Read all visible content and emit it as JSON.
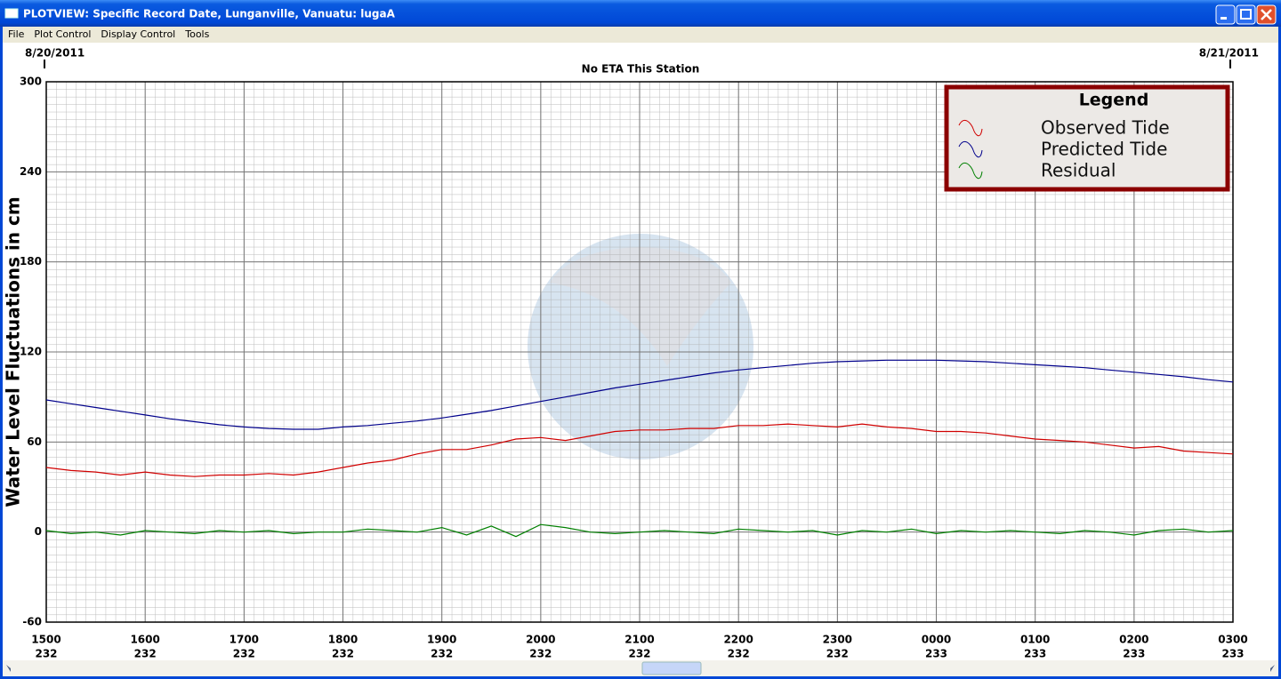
{
  "window": {
    "title": "PLOTVIEW: Specific Record Date, Lunganville, Vanuatu: lugaA"
  },
  "menu": [
    "File",
    "Plot Control",
    "Display Control",
    "Tools"
  ],
  "chart_data": {
    "type": "line",
    "annotation": "No ETA This Station",
    "date_left": "8/20/2011",
    "date_right": "8/21/2011",
    "ylabel": "Water Level Fluctuations in cm",
    "legend_title": "Legend",
    "legend_position": "upper right",
    "grid": true,
    "x": [
      15,
      15.25,
      15.5,
      15.75,
      16,
      16.25,
      16.5,
      16.75,
      17,
      17.25,
      17.5,
      17.75,
      18,
      18.25,
      18.5,
      18.75,
      19,
      19.25,
      19.5,
      19.75,
      20,
      20.25,
      20.5,
      20.75,
      21,
      21.25,
      21.5,
      21.75,
      22,
      22.25,
      22.5,
      22.75,
      23,
      23.25,
      23.5,
      23.75,
      24,
      24.25,
      24.5,
      24.75,
      25,
      25.25,
      25.5,
      25.75,
      26,
      26.25,
      26.5,
      26.75,
      27
    ],
    "xlim": [
      15,
      27
    ],
    "xticks": [
      {
        "value": 15,
        "label": "1500"
      },
      {
        "value": 16,
        "label": "1600"
      },
      {
        "value": 17,
        "label": "1700"
      },
      {
        "value": 18,
        "label": "1800"
      },
      {
        "value": 19,
        "label": "1900"
      },
      {
        "value": 20,
        "label": "2000"
      },
      {
        "value": 21,
        "label": "2100"
      },
      {
        "value": 22,
        "label": "2200"
      },
      {
        "value": 23,
        "label": "2300"
      },
      {
        "value": 24,
        "label": "0000"
      },
      {
        "value": 25,
        "label": "0100"
      },
      {
        "value": 26,
        "label": "0200"
      },
      {
        "value": 27,
        "label": "0300"
      }
    ],
    "xtick_sublabels": [
      "232",
      "232",
      "232",
      "232",
      "232",
      "232",
      "232",
      "232",
      "232",
      "233",
      "233",
      "233",
      "233"
    ],
    "highlight_xtick": 9,
    "highlight_color": "#c00000",
    "ylim": [
      -60,
      300
    ],
    "yticks": [
      -60,
      0,
      60,
      120,
      180,
      240,
      300
    ],
    "series": [
      {
        "name": "Observed Tide",
        "color": "#d00000",
        "values": [
          43,
          41,
          40,
          38,
          40,
          38,
          37,
          38,
          38,
          39,
          38,
          40,
          43,
          46,
          48,
          52,
          55,
          55,
          58,
          62,
          63,
          61,
          64,
          67,
          68,
          68,
          69,
          69,
          71,
          71,
          72,
          71,
          70,
          72,
          70,
          69,
          67,
          67,
          66,
          64,
          62,
          61,
          60,
          58,
          56,
          57,
          54,
          53,
          52
        ]
      },
      {
        "name": "Predicted Tide",
        "color": "#00008b",
        "values": [
          88,
          85.5,
          83,
          80.5,
          78,
          75.5,
          73.5,
          71.5,
          70,
          69,
          68.5,
          68.5,
          70,
          71,
          72.5,
          74,
          76,
          78.5,
          81,
          84,
          87,
          90,
          93,
          96,
          98.5,
          101,
          103.5,
          106,
          108,
          109.5,
          111,
          112.5,
          113.5,
          114,
          114.5,
          114.5,
          114.5,
          114,
          113.5,
          112.5,
          111.5,
          110.5,
          109.5,
          108,
          106.5,
          105,
          103.5,
          101.5,
          100
        ]
      },
      {
        "name": "Residual",
        "color": "#008000",
        "values": [
          1,
          -1,
          0,
          -2,
          1,
          0,
          -1,
          1,
          0,
          1,
          -1,
          0,
          0,
          2,
          1,
          0,
          3,
          -2,
          4,
          -3,
          5,
          3,
          0,
          -1,
          0,
          1,
          0,
          -1,
          2,
          1,
          0,
          1,
          -2,
          1,
          0,
          2,
          -1,
          1,
          0,
          1,
          0,
          -1,
          1,
          0,
          -2,
          1,
          2,
          0,
          1
        ]
      }
    ]
  }
}
